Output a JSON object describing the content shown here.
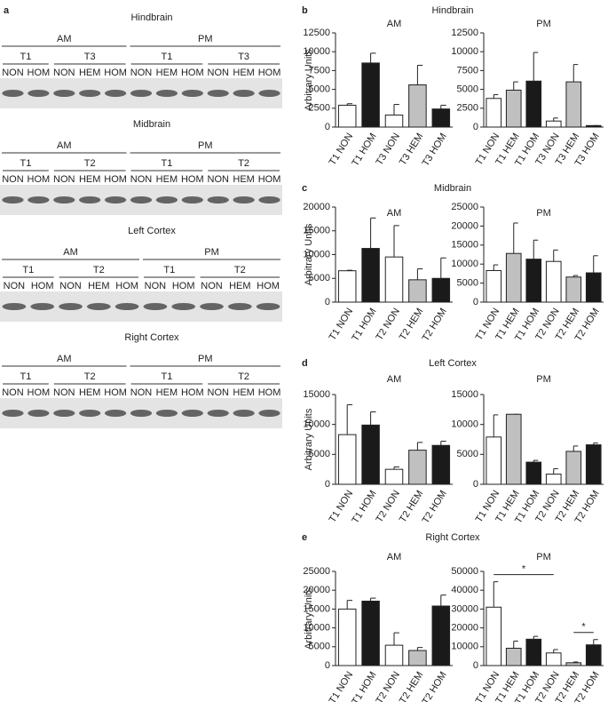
{
  "panel_a": {
    "letter": "a",
    "blots": [
      {
        "title": "Hindbrain",
        "periods": [
          {
            "label": "AM",
            "groups": [
              {
                "label": "T1",
                "lanes": [
                  "NON",
                  "HOM"
                ]
              },
              {
                "label": "T3",
                "lanes": [
                  "NON",
                  "HEM",
                  "HOM"
                ]
              }
            ]
          },
          {
            "label": "PM",
            "groups": [
              {
                "label": "T1",
                "lanes": [
                  "NON",
                  "HEM",
                  "HOM"
                ]
              },
              {
                "label": "T3",
                "lanes": [
                  "NON",
                  "HEM",
                  "HOM"
                ]
              }
            ]
          }
        ]
      },
      {
        "title": "Midbrain",
        "periods": [
          {
            "label": "AM",
            "groups": [
              {
                "label": "T1",
                "lanes": [
                  "NON",
                  "HOM"
                ]
              },
              {
                "label": "T2",
                "lanes": [
                  "NON",
                  "HEM",
                  "HOM"
                ]
              }
            ]
          },
          {
            "label": "PM",
            "groups": [
              {
                "label": "T1",
                "lanes": [
                  "NON",
                  "HEM",
                  "HOM"
                ]
              },
              {
                "label": "T2",
                "lanes": [
                  "NON",
                  "HEM",
                  "HOM"
                ]
              }
            ]
          }
        ]
      },
      {
        "title": "Left Cortex",
        "periods": [
          {
            "label": "AM",
            "groups": [
              {
                "label": "T1",
                "lanes": [
                  "NON",
                  "HOM"
                ]
              },
              {
                "label": "T2",
                "lanes": [
                  "NON",
                  "HEM",
                  "HOM"
                ]
              }
            ]
          },
          {
            "label": "PM",
            "groups": [
              {
                "label": "T1",
                "lanes": [
                  "NON",
                  "HOM"
                ]
              },
              {
                "label": "T2",
                "lanes": [
                  "NON",
                  "HEM",
                  "HOM"
                ]
              }
            ]
          }
        ]
      },
      {
        "title": "Right Cortex",
        "periods": [
          {
            "label": "AM",
            "groups": [
              {
                "label": "T1",
                "lanes": [
                  "NON",
                  "HOM"
                ]
              },
              {
                "label": "T2",
                "lanes": [
                  "NON",
                  "HEM",
                  "HOM"
                ]
              }
            ]
          },
          {
            "label": "PM",
            "groups": [
              {
                "label": "T1",
                "lanes": [
                  "NON",
                  "HEM",
                  "HOM"
                ]
              },
              {
                "label": "T2",
                "lanes": [
                  "NON",
                  "HEM",
                  "HOM"
                ]
              }
            ]
          }
        ]
      }
    ]
  },
  "panels": [
    {
      "letter": "b",
      "title": "Hindbrain"
    },
    {
      "letter": "c",
      "title": "Midbrain"
    },
    {
      "letter": "d",
      "title": "Left Cortex"
    },
    {
      "letter": "e",
      "title": "Right Cortex"
    }
  ],
  "chart_data": [
    {
      "type": "bar",
      "title": "AM",
      "ylabel": "Arbitrary Units",
      "categories": [
        "T1 NON",
        "T1 HOM",
        "T3 NON",
        "T3 HEM",
        "T3 HOM"
      ],
      "values": [
        2900,
        8500,
        1600,
        5600,
        2400
      ],
      "errors": [
        200,
        1300,
        1400,
        2600,
        500
      ],
      "colors": [
        "#ffffff",
        "#1a1a1a",
        "#ffffff",
        "#c0c0c0",
        "#1a1a1a"
      ],
      "ylim": [
        0,
        12500
      ],
      "yticks": [
        0,
        2500,
        5000,
        7500,
        10000,
        12500
      ]
    },
    {
      "type": "bar",
      "title": "PM",
      "categories": [
        "T1 NON",
        "T1 HEM",
        "T1 HOM",
        "T3 NON",
        "T3 HEM",
        "T3 HOM"
      ],
      "values": [
        3800,
        4900,
        6100,
        800,
        6000,
        200
      ],
      "errors": [
        500,
        1100,
        3800,
        400,
        2300,
        0
      ],
      "colors": [
        "#ffffff",
        "#c0c0c0",
        "#1a1a1a",
        "#ffffff",
        "#c0c0c0",
        "#1a1a1a"
      ],
      "ylim": [
        0,
        12500
      ],
      "yticks": [
        0,
        2500,
        5000,
        7500,
        10000,
        12500
      ]
    },
    {
      "type": "bar",
      "title": "AM",
      "ylabel": "Arbitrary Units",
      "categories": [
        "T1 NON",
        "T1 HOM",
        "T2 NON",
        "T2 HEM",
        "T2 HOM"
      ],
      "values": [
        6600,
        11300,
        9500,
        4700,
        5000
      ],
      "errors": [
        100,
        6400,
        6600,
        2300,
        4300
      ],
      "colors": [
        "#ffffff",
        "#1a1a1a",
        "#ffffff",
        "#c0c0c0",
        "#1a1a1a"
      ],
      "ylim": [
        0,
        20000
      ],
      "yticks": [
        0,
        5000,
        10000,
        15000,
        20000
      ]
    },
    {
      "type": "bar",
      "title": "PM",
      "categories": [
        "T1 NON",
        "T1 HEM",
        "T1 HOM",
        "T2 NON",
        "T2 HEM",
        "T2 HOM"
      ],
      "values": [
        8300,
        12800,
        11300,
        10700,
        6600,
        7700
      ],
      "errors": [
        1500,
        8000,
        5000,
        3000,
        400,
        4500
      ],
      "colors": [
        "#ffffff",
        "#c0c0c0",
        "#1a1a1a",
        "#ffffff",
        "#c0c0c0",
        "#1a1a1a"
      ],
      "ylim": [
        0,
        25000
      ],
      "yticks": [
        0,
        5000,
        10000,
        15000,
        20000,
        25000
      ]
    },
    {
      "type": "bar",
      "title": "AM",
      "ylabel": "Arbitrary Units",
      "categories": [
        "T1 NON",
        "T1 HOM",
        "T2 NON",
        "T2 HEM",
        "T2 HOM"
      ],
      "values": [
        8300,
        9900,
        2500,
        5700,
        6500
      ],
      "errors": [
        5000,
        2200,
        400,
        1300,
        700
      ],
      "colors": [
        "#ffffff",
        "#1a1a1a",
        "#ffffff",
        "#c0c0c0",
        "#1a1a1a"
      ],
      "ylim": [
        0,
        15000
      ],
      "yticks": [
        0,
        5000,
        10000,
        15000
      ]
    },
    {
      "type": "bar",
      "title": "PM",
      "categories": [
        "T1 NON",
        "T1 HEM",
        "T1 HOM",
        "T2 NON",
        "T2 HEM",
        "T2 HOM"
      ],
      "values": [
        7900,
        11700,
        3700,
        1700,
        5500,
        6600
      ],
      "errors": [
        3700,
        0,
        300,
        900,
        900,
        300
      ],
      "colors": [
        "#ffffff",
        "#c0c0c0",
        "#1a1a1a",
        "#ffffff",
        "#c0c0c0",
        "#1a1a1a"
      ],
      "ylim": [
        0,
        15000
      ],
      "yticks": [
        0,
        5000,
        10000,
        15000
      ]
    },
    {
      "type": "bar",
      "title": "AM",
      "ylabel": "Arbitrary Units",
      "categories": [
        "T1 NON",
        "T1 HOM",
        "T2 NON",
        "T2 HEM",
        "T2 HOM"
      ],
      "values": [
        15000,
        17100,
        5400,
        4000,
        15800
      ],
      "errors": [
        2300,
        800,
        3300,
        800,
        2900
      ],
      "colors": [
        "#ffffff",
        "#1a1a1a",
        "#ffffff",
        "#c0c0c0",
        "#1a1a1a"
      ],
      "ylim": [
        0,
        25000
      ],
      "yticks": [
        0,
        5000,
        10000,
        15000,
        20000,
        25000
      ]
    },
    {
      "type": "bar",
      "title": "PM",
      "categories": [
        "T1 NON",
        "T1 HEM",
        "T1 HOM",
        "T2 NON",
        "T2 HEM",
        "T2 HOM"
      ],
      "values": [
        31000,
        9200,
        14000,
        6700,
        1500,
        11000
      ],
      "errors": [
        13500,
        3800,
        1500,
        1800,
        400,
        2800
      ],
      "colors": [
        "#ffffff",
        "#c0c0c0",
        "#1a1a1a",
        "#ffffff",
        "#c0c0c0",
        "#1a1a1a"
      ],
      "ylim": [
        0,
        50000
      ],
      "yticks": [
        0,
        10000,
        20000,
        30000,
        40000,
        50000
      ],
      "annotations": [
        {
          "text": "*",
          "from": 0,
          "to": 3
        },
        {
          "text": "*",
          "from": 4,
          "to": 5
        }
      ]
    }
  ]
}
